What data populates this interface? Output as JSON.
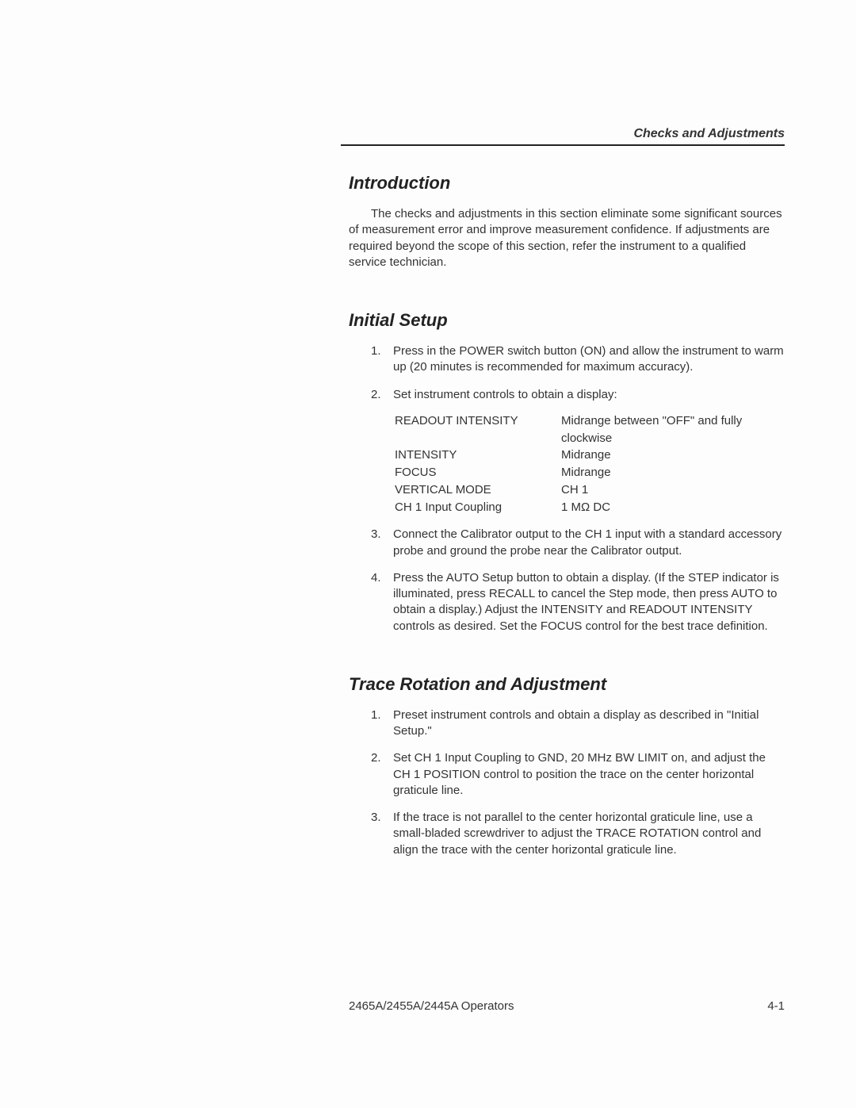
{
  "header": {
    "right": "Checks and Adjustments"
  },
  "intro": {
    "title": "Introduction",
    "para": "The checks and adjustments in this section eliminate some significant sources of measurement error and improve measurement confidence. If adjustments are required beyond the scope of this section, refer the instrument to a qualified service technician."
  },
  "setup": {
    "title": "Initial Setup",
    "items": [
      {
        "num": "1.",
        "text": "Press in the POWER switch button (ON) and allow the instrument to warm up (20 minutes is recommended for maximum accuracy)."
      },
      {
        "num": "2.",
        "text": "Set instrument controls to obtain a display:"
      }
    ],
    "settings": [
      {
        "label": "READOUT INTENSITY",
        "value": "Midrange between \"OFF\" and fully clockwise"
      },
      {
        "label": "INTENSITY",
        "value": "Midrange"
      },
      {
        "label": "FOCUS",
        "value": "Midrange"
      },
      {
        "label": "VERTICAL MODE",
        "value": "CH 1"
      },
      {
        "label": "CH 1 Input Coupling",
        "value": "1 MΩ DC"
      }
    ],
    "items2": [
      {
        "num": "3.",
        "text": "Connect the Calibrator output to the CH 1 input with a standard accessory probe and ground the probe near the Calibrator output."
      },
      {
        "num": "4.",
        "text": "Press the AUTO Setup button to obtain a display. (If the STEP indicator is illuminated, press RECALL to cancel the Step mode, then press AUTO to obtain a display.) Adjust the INTENSITY and READOUT INTENSITY controls as desired. Set the FOCUS control for the best trace definition."
      }
    ]
  },
  "trace": {
    "title": "Trace Rotation and Adjustment",
    "items": [
      {
        "num": "1.",
        "text": "Preset instrument controls and obtain a display as described in \"Initial Setup.\""
      },
      {
        "num": "2.",
        "text": "Set CH 1 Input Coupling to GND, 20 MHz BW LIMIT on, and adjust the CH 1 POSITION control to position the trace on the center horizontal graticule line."
      },
      {
        "num": "3.",
        "text": "If the trace is not parallel to the center horizontal graticule line, use a small-bladed screwdriver to adjust the TRACE ROTATION control and align the trace with the center horizontal graticule line."
      }
    ]
  },
  "footer": {
    "left": "2465A/2455A/2445A Operators",
    "right": "4-1"
  }
}
